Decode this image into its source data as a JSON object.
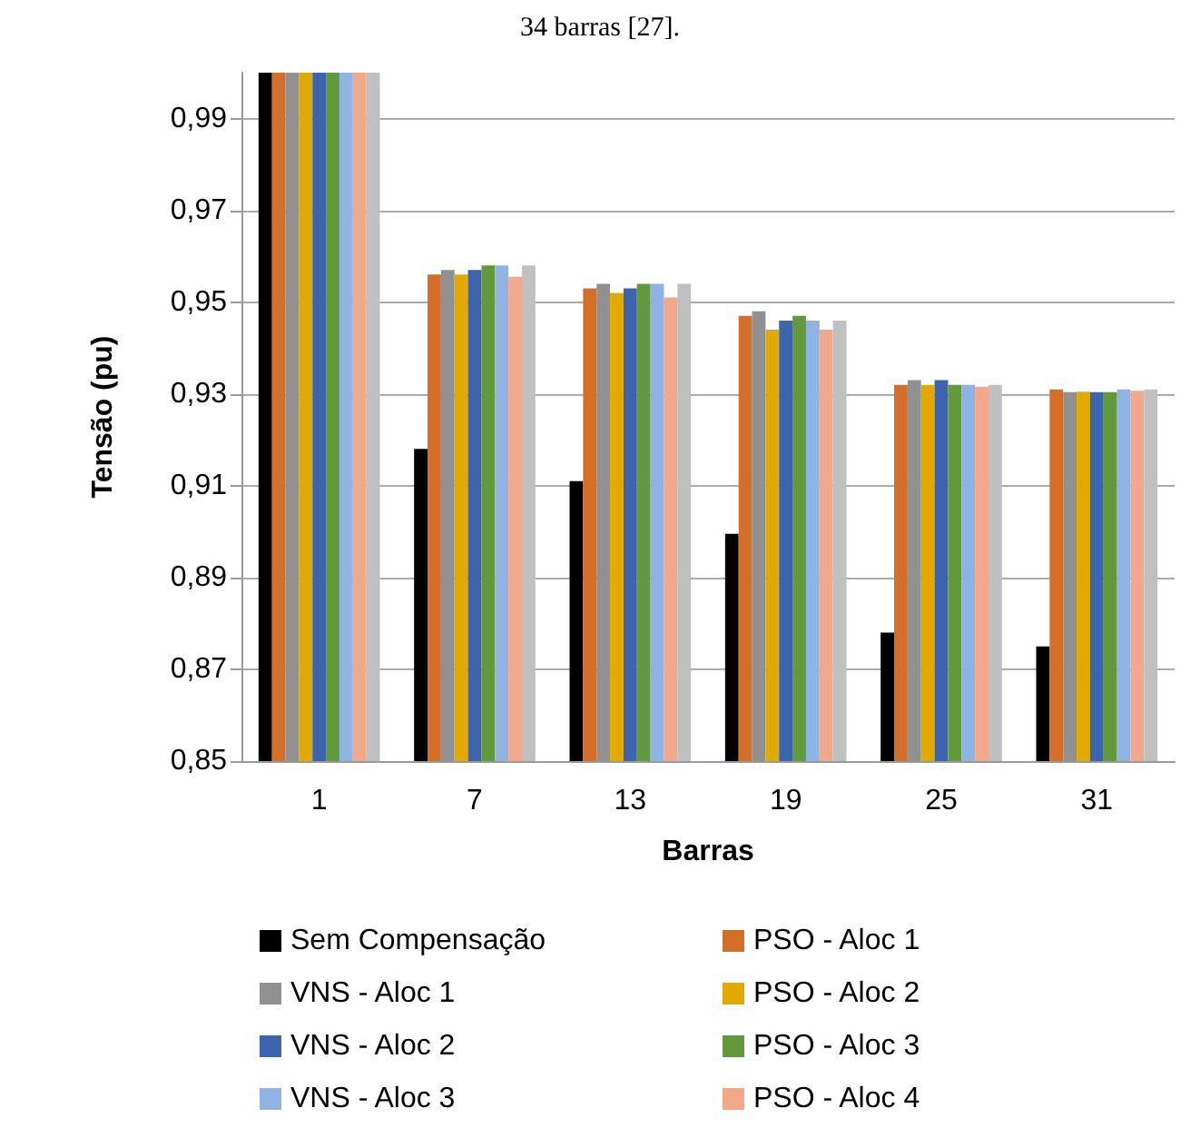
{
  "chart_data": {
    "type": "bar",
    "annotations": [
      "34 barras [27]."
    ],
    "xlabel": "Barras",
    "ylabel": "Tensão (pu)",
    "categories": [
      "1",
      "7",
      "13",
      "19",
      "25",
      "31"
    ],
    "series": [
      {
        "name": "Sem Compensação",
        "color": "#000000",
        "values": [
          1.0,
          0.918,
          0.911,
          0.8995,
          0.878,
          0.875
        ]
      },
      {
        "name": "PSO - Aloc 1",
        "color": "#d46f2a",
        "values": [
          1.0,
          0.956,
          0.953,
          0.947,
          0.932,
          0.931
        ]
      },
      {
        "name": "VNS - Aloc 1",
        "color": "#919191",
        "values": [
          1.0,
          0.957,
          0.954,
          0.948,
          0.933,
          0.9304
        ]
      },
      {
        "name": "PSO - Aloc 2",
        "color": "#e2aa00",
        "values": [
          1.0,
          0.956,
          0.952,
          0.944,
          0.932,
          0.9305
        ]
      },
      {
        "name": "VNS - Aloc 2",
        "color": "#3d65ad",
        "values": [
          1.0,
          0.957,
          0.953,
          0.946,
          0.933,
          0.9304
        ]
      },
      {
        "name": "PSO - Aloc 3",
        "color": "#61993b",
        "values": [
          1.0,
          0.958,
          0.954,
          0.947,
          0.932,
          0.9304
        ]
      },
      {
        "name": "VNS - Aloc 3",
        "color": "#8fb4e3",
        "values": [
          1.0,
          0.958,
          0.954,
          0.946,
          0.932,
          0.931
        ]
      },
      {
        "name": "PSO - Aloc 4",
        "color": "#f2a88a",
        "values": [
          1.0,
          0.9555,
          0.951,
          0.944,
          0.9316,
          0.9307
        ]
      },
      {
        "color": "#c0c0c0",
        "values": [
          1.0,
          0.958,
          0.954,
          0.946,
          0.932,
          0.931
        ]
      }
    ],
    "ylim": [
      0.85,
      1.0
    ],
    "yticks": [
      {
        "value": 0.85,
        "label": "0,85"
      },
      {
        "value": 0.87,
        "label": "0,87"
      },
      {
        "value": 0.89,
        "label": "0,89"
      },
      {
        "value": 0.91,
        "label": "0,91"
      },
      {
        "value": 0.93,
        "label": "0,93"
      },
      {
        "value": 0.95,
        "label": "0,95"
      },
      {
        "value": 0.97,
        "label": "0,97"
      },
      {
        "value": 0.99,
        "label": "0,99"
      }
    ],
    "grid": "y",
    "legend": "bottom"
  }
}
